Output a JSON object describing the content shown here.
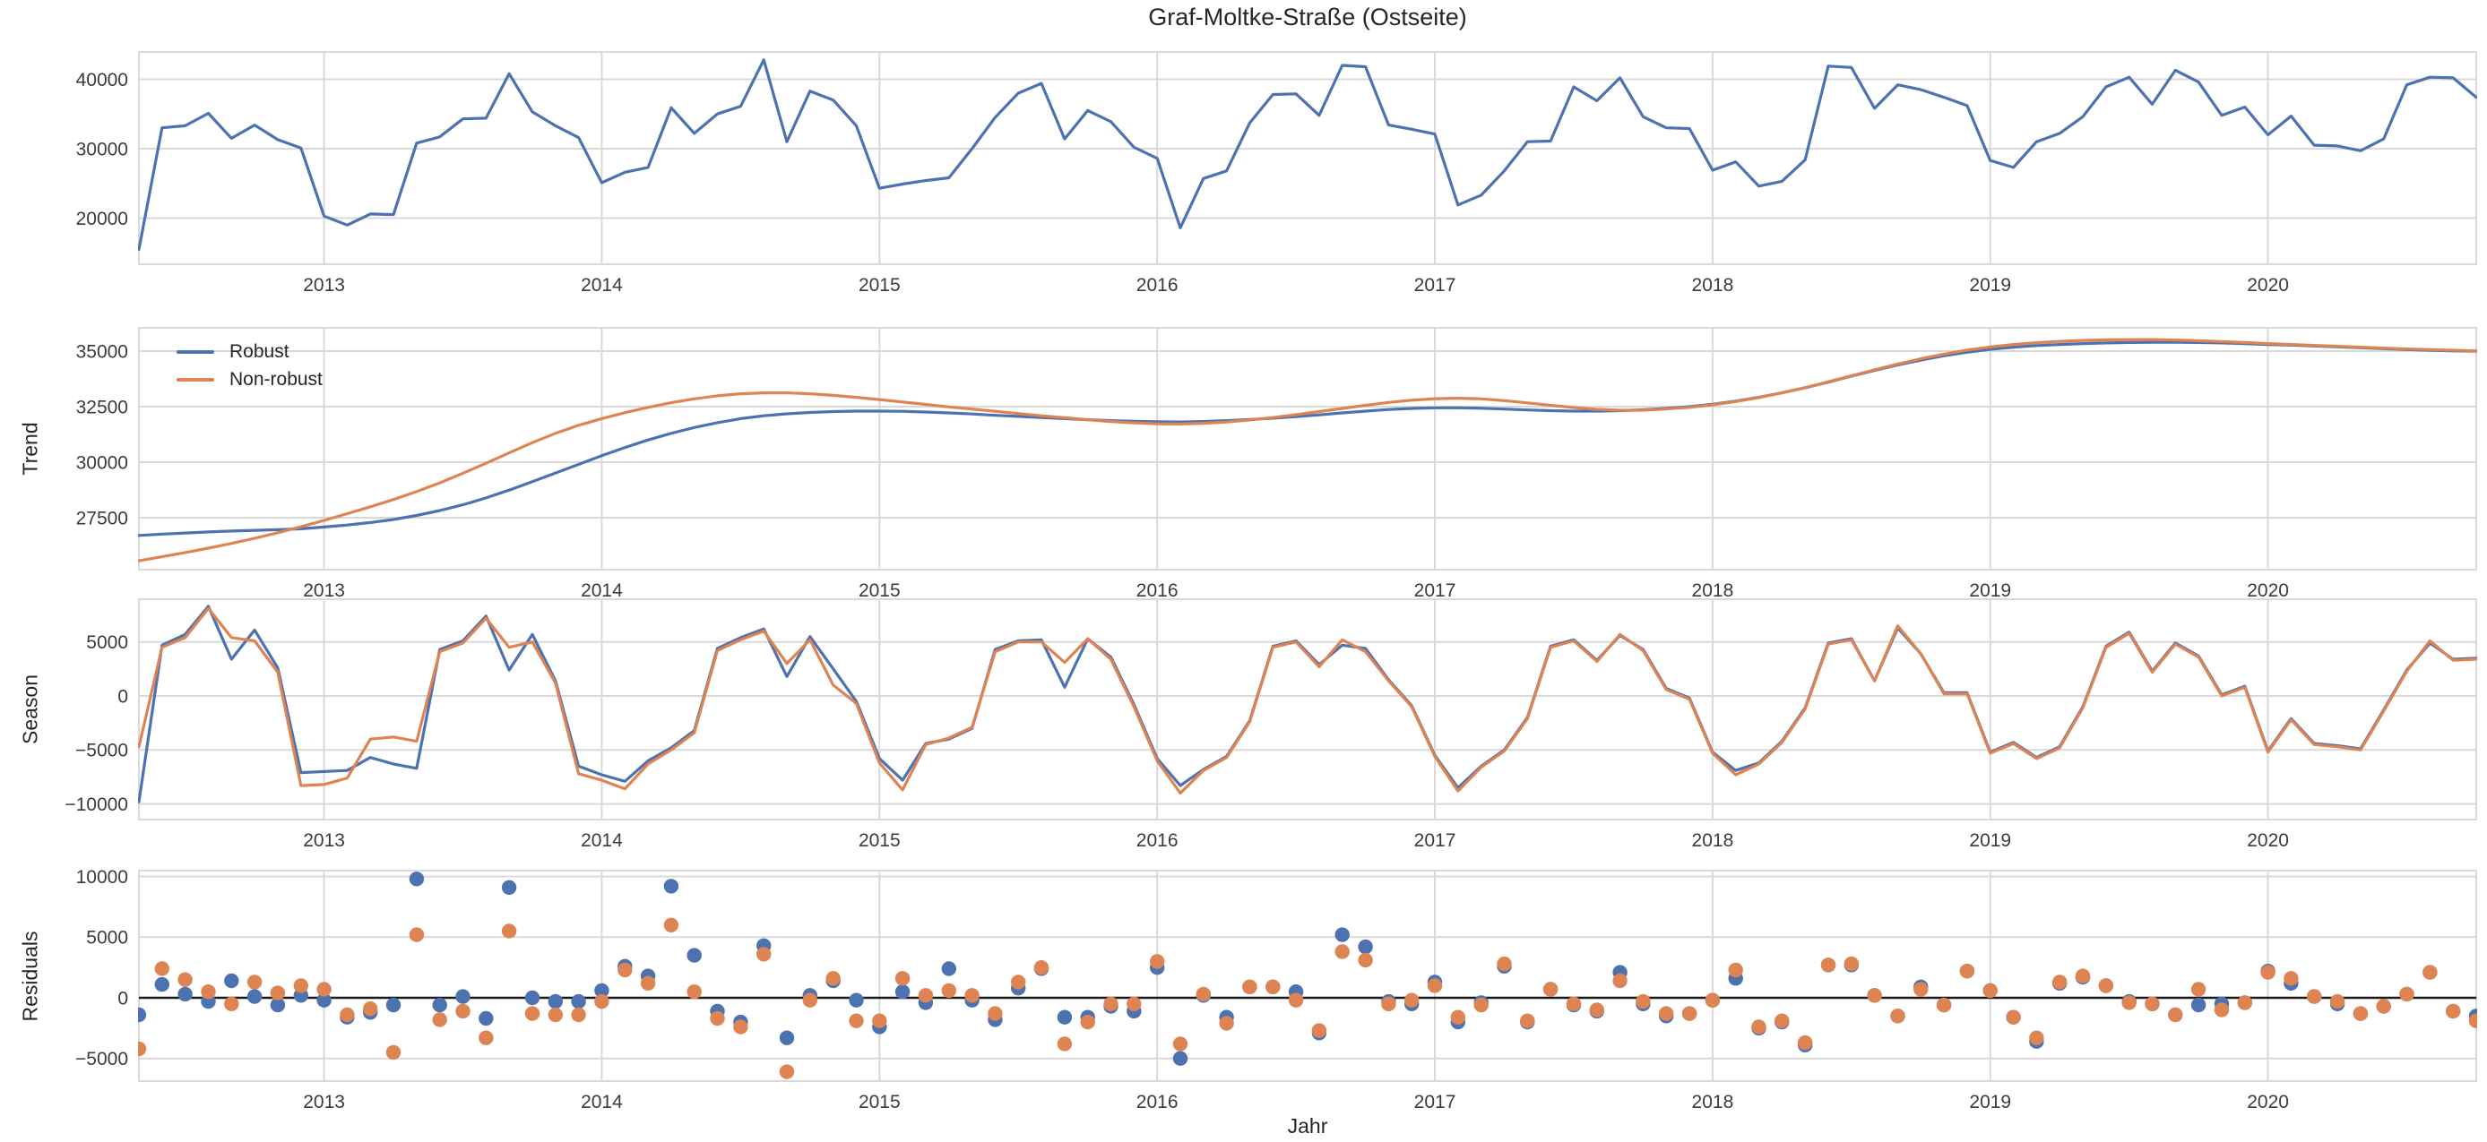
{
  "title": "Graf-Moltke-Straße (Ostseite)",
  "xlabel": "Jahr",
  "colors": {
    "robust": "#4C72B0",
    "non_robust": "#DD8452",
    "grid": "#D9D9D9",
    "zero_line": "#1a1a1a",
    "text": "#262626"
  },
  "legend": {
    "items": [
      {
        "label": "Robust",
        "color_key": "robust"
      },
      {
        "label": "Non-robust",
        "color_key": "non_robust"
      }
    ]
  },
  "chart_data": {
    "x": {
      "frequency": "monthly",
      "start_month": "2012-05",
      "end_month": "2020-10",
      "count": 102,
      "start_decimal_year": 2012.3333,
      "step": 0.0833333
    },
    "panels": [
      {
        "name": "observed",
        "type": "line",
        "ylabel": "",
        "yticks": [
          20000,
          30000,
          40000
        ],
        "ylim": [
          13355,
          43935
        ],
        "xtick_years": [
          2013,
          2014,
          2015,
          2016,
          2017,
          2018,
          2019,
          2020
        ],
        "series": [
          {
            "name": "observed",
            "color_key": "robust",
            "values": [
              15500,
              33000,
              33300,
              35100,
              31500,
              33400,
              31300,
              30100,
              20300,
              19000,
              20600,
              20500,
              30800,
              31700,
              34300,
              34400,
              40800,
              35300,
              33300,
              31600,
              25100,
              26600,
              27300,
              35900,
              32200,
              35000,
              36100,
              42800,
              31000,
              38300,
              37000,
              33300,
              24300,
              24900,
              25400,
              25800,
              30000,
              34500,
              38000,
              39400,
              31400,
              35500,
              33900,
              30200,
              28600,
              18600,
              25700,
              26800,
              33700,
              37800,
              37900,
              34800,
              42000,
              41800,
              33400,
              32800,
              32100,
              21900,
              23300,
              26800,
              31000,
              31100,
              38900,
              36900,
              40200,
              34600,
              33000,
              32900,
              26900,
              28100,
              24600,
              25300,
              28400,
              41900,
              41700,
              35800,
              39200,
              38500,
              37400,
              36200,
              28300,
              27300,
              31000,
              32200,
              34600,
              38900,
              40300,
              36400,
              41300,
              39600,
              34800,
              36000,
              32000,
              34700,
              30500,
              30400,
              29700,
              31400,
              39200,
              40300,
              40200,
              37400
            ]
          }
        ]
      },
      {
        "name": "trend",
        "type": "line",
        "ylabel": "Trend",
        "yticks": [
          27500,
          30000,
          32500,
          35000
        ],
        "ylim": [
          25160,
          36050
        ],
        "xtick_years": [
          2013,
          2014,
          2015,
          2016,
          2017,
          2018,
          2019,
          2020
        ],
        "series": [
          {
            "name": "Robust",
            "color_key": "robust",
            "values": [
              26700,
              26760,
              26810,
              26860,
              26900,
              26930,
              26960,
              27000,
              27080,
              27170,
              27280,
              27420,
              27600,
              27820,
              28080,
              28390,
              28740,
              29120,
              29510,
              29900,
              30290,
              30660,
              31000,
              31300,
              31560,
              31780,
              31960,
              32090,
              32180,
              32240,
              32280,
              32300,
              32300,
              32290,
              32260,
              32220,
              32170,
              32110,
              32060,
              32010,
              31960,
              31910,
              31870,
              31840,
              31820,
              31810,
              31830,
              31870,
              31920,
              31980,
              32050,
              32130,
              32220,
              32300,
              32370,
              32420,
              32450,
              32450,
              32430,
              32390,
              32350,
              32320,
              32300,
              32300,
              32320,
              32360,
              32420,
              32500,
              32610,
              32750,
              32920,
              33120,
              33350,
              33600,
              33870,
              34130,
              34380,
              34600,
              34790,
              34950,
              35080,
              35180,
              35250,
              35300,
              35340,
              35370,
              35390,
              35400,
              35400,
              35390,
              35370,
              35340,
              35300,
              35270,
              35230,
              35190,
              35150,
              35110,
              35070,
              35040,
              35010,
              35000
            ]
          },
          {
            "name": "Non-robust",
            "color_key": "non_robust",
            "values": [
              25560,
              25740,
              25930,
              26130,
              26340,
              26570,
              26820,
              27090,
              27380,
              27680,
              27990,
              28320,
              28680,
              29070,
              29500,
              29950,
              30420,
              30880,
              31300,
              31660,
              31960,
              32230,
              32470,
              32680,
              32850,
              32990,
              33080,
              33120,
              33120,
              33080,
              33010,
              32920,
              32820,
              32710,
              32600,
              32490,
              32390,
              32290,
              32190,
              32090,
              32000,
              31910,
              31830,
              31770,
              31730,
              31720,
              31750,
              31810,
              31900,
              32010,
              32140,
              32280,
              32420,
              32560,
              32690,
              32790,
              32860,
              32880,
              32850,
              32770,
              32670,
              32560,
              32460,
              32380,
              32340,
              32340,
              32390,
              32470,
              32580,
              32730,
              32910,
              33120,
              33360,
              33620,
              33890,
              34160,
              34420,
              34660,
              34870,
              35050,
              35190,
              35300,
              35380,
              35440,
              35480,
              35510,
              35520,
              35520,
              35500,
              35470,
              35430,
              35390,
              35340,
              35300,
              35260,
              35220,
              35180,
              35140,
              35100,
              35070,
              35040,
              35010
            ]
          }
        ]
      },
      {
        "name": "season",
        "type": "line",
        "ylabel": "Season",
        "yticks": [
          -10000,
          -5000,
          0,
          5000
        ],
        "ylim": [
          -11443,
          8955
        ],
        "xtick_years": [
          2013,
          2014,
          2015,
          2016,
          2017,
          2018,
          2019,
          2020
        ],
        "series": [
          {
            "name": "Robust",
            "color_key": "robust",
            "values": [
              -9800,
              4700,
              5700,
              8300,
              3400,
              6100,
              2600,
              -7100,
              -7000,
              -6900,
              -5700,
              -6300,
              -6700,
              4300,
              5100,
              7400,
              2400,
              5700,
              1400,
              -6500,
              -7300,
              -7900,
              -6000,
              -4800,
              -3200,
              4400,
              5400,
              6200,
              1800,
              5500,
              2500,
              -500,
              -5800,
              -7800,
              -4400,
              -4000,
              -3000,
              4300,
              5100,
              5200,
              800,
              5300,
              3600,
              -800,
              -5800,
              -8300,
              -6800,
              -5600,
              -2300,
              4600,
              5100,
              2900,
              4700,
              4400,
              1500,
              -900,
              -5500,
              -8500,
              -6500,
              -5000,
              -2000,
              4600,
              5200,
              3300,
              5600,
              4300,
              700,
              -200,
              -5200,
              -6900,
              -6200,
              -4200,
              -1100,
              4900,
              5300,
              1400,
              6300,
              3900,
              300,
              300,
              -5200,
              -4300,
              -5700,
              -4700,
              -1000,
              4600,
              5900,
              2300,
              4900,
              3700,
              100,
              900,
              -5100,
              -2100,
              -4400,
              -4600,
              -4900,
              -1300,
              2400,
              4900,
              3400,
              3500
            ]
          },
          {
            "name": "Non-robust",
            "color_key": "non_robust",
            "values": [
              -4700,
              4500,
              5400,
              8100,
              5400,
              5100,
              2200,
              -8300,
              -8200,
              -7600,
              -4000,
              -3800,
              -4200,
              4100,
              4900,
              7200,
              4500,
              5000,
              1200,
              -7200,
              -7800,
              -8600,
              -6300,
              -5000,
              -3400,
              4200,
              5200,
              6000,
              3000,
              5200,
              1000,
              -700,
              -6200,
              -8700,
              -4500,
              -3900,
              -2900,
              4100,
              5000,
              5000,
              3100,
              5300,
              3400,
              -1000,
              -6000,
              -9000,
              -6900,
              -5700,
              -2400,
              4500,
              5000,
              2700,
              5200,
              4100,
              1400,
              -1000,
              -5600,
              -8800,
              -6600,
              -5100,
              -2100,
              4500,
              5100,
              3200,
              5700,
              4200,
              600,
              -300,
              -5300,
              -7300,
              -6300,
              -4300,
              -1200,
              4800,
              5200,
              1400,
              6500,
              3900,
              200,
              200,
              -5300,
              -4400,
              -5800,
              -4800,
              -1100,
              4500,
              5800,
              2200,
              4800,
              3600,
              0,
              800,
              -5200,
              -2200,
              -4500,
              -4700,
              -5000,
              -1400,
              2300,
              5100,
              3300,
              3400
            ]
          }
        ]
      },
      {
        "name": "residuals",
        "type": "scatter",
        "ylabel": "Residuals",
        "yticks": [
          -5000,
          0,
          5000,
          10000
        ],
        "ylim": [
          -6868,
          10487
        ],
        "zero_line": true,
        "xtick_years": [
          2013,
          2014,
          2015,
          2016,
          2017,
          2018,
          2019,
          2020
        ],
        "series": [
          {
            "name": "Robust",
            "color_key": "robust",
            "values": [
              -1400,
              1100,
              300,
              -300,
              1400,
              100,
              -600,
              200,
              -200,
              -1600,
              -1200,
              -600,
              9800,
              -600,
              100,
              -1700,
              9100,
              0,
              -300,
              -300,
              600,
              2600,
              1800,
              9200,
              3500,
              -1100,
              -2000,
              4300,
              -3300,
              200,
              1400,
              -200,
              -2400,
              500,
              -400,
              2400,
              -200,
              -1800,
              800,
              2400,
              -1600,
              -1600,
              -700,
              -1100,
              2500,
              -5000,
              200,
              -1600,
              900,
              900,
              500,
              -2900,
              5200,
              4200,
              -300,
              -500,
              1300,
              -2000,
              -400,
              2600,
              -2000,
              700,
              -600,
              -1100,
              2100,
              -500,
              -1500,
              -1300,
              -200,
              1600,
              -2500,
              -2000,
              -3900,
              2700,
              2700,
              200,
              -1500,
              900,
              -600,
              2200,
              600,
              -1600,
              -3600,
              1200,
              1700,
              1000,
              -300,
              -500,
              -1400,
              -600,
              -500,
              -400,
              2200,
              1200,
              100,
              -500,
              -1300,
              -700,
              300,
              2100,
              -1100,
              -1500
            ]
          },
          {
            "name": "Non-robust",
            "color_key": "non_robust",
            "values": [
              -4200,
              2400,
              1500,
              500,
              -500,
              1300,
              400,
              1000,
              700,
              -1400,
              -900,
              -4500,
              5200,
              -1800,
              -1100,
              -3300,
              5500,
              -1300,
              -1400,
              -1400,
              -300,
              2300,
              1200,
              6000,
              500,
              -1700,
              -2400,
              3600,
              -6100,
              -200,
              1600,
              -1900,
              -1900,
              1600,
              200,
              600,
              200,
              -1300,
              1300,
              2500,
              -3800,
              -2000,
              -500,
              -500,
              3000,
              -3800,
              300,
              -2100,
              900,
              900,
              -200,
              -2700,
              3800,
              3100,
              -500,
              -200,
              1000,
              -1600,
              -600,
              2800,
              -1900,
              700,
              -500,
              -1000,
              1400,
              -300,
              -1300,
              -1300,
              -200,
              2300,
              -2400,
              -1900,
              -3700,
              2700,
              2800,
              200,
              -1500,
              700,
              -600,
              2200,
              600,
              -1600,
              -3300,
              1300,
              1800,
              1000,
              -400,
              -500,
              -1400,
              700,
              -1000,
              -400,
              2100,
              1600,
              100,
              -300,
              -1300,
              -700,
              300,
              2100,
              -1100,
              -1900
            ]
          }
        ]
      }
    ]
  }
}
